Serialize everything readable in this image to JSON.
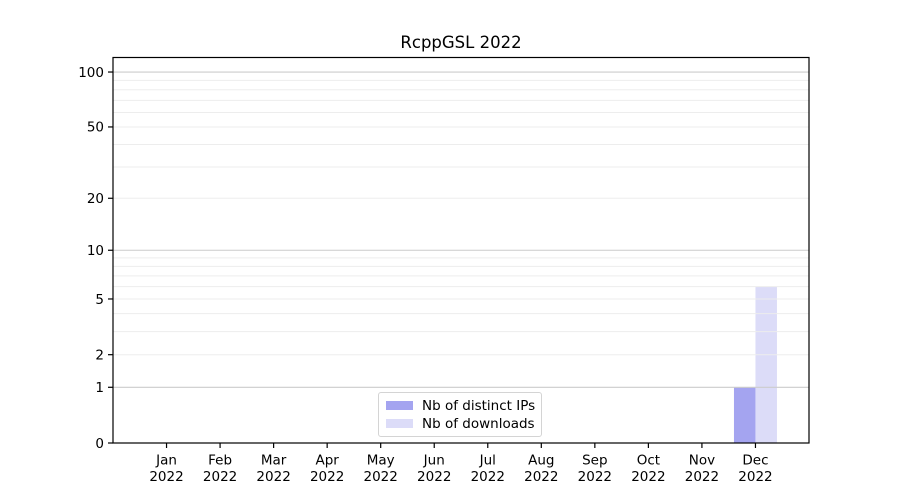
{
  "chart_data": {
    "type": "bar",
    "title": "RcppGSL 2022",
    "categories": [
      "Jan",
      "Feb",
      "Mar",
      "Apr",
      "May",
      "Jun",
      "Jul",
      "Aug",
      "Sep",
      "Oct",
      "Nov",
      "Dec"
    ],
    "year_label": "2022",
    "series": [
      {
        "name": "Nb of distinct IPs",
        "slug": "distinct-ips",
        "color": "#a4a4f0",
        "values": [
          0,
          0,
          0,
          0,
          0,
          0,
          0,
          0,
          0,
          0,
          0,
          1
        ]
      },
      {
        "name": "Nb of downloads",
        "slug": "downloads",
        "color": "#dcdcf8",
        "values": [
          0,
          0,
          0,
          0,
          0,
          0,
          0,
          0,
          0,
          0,
          0,
          6
        ]
      }
    ],
    "xlabel": "",
    "ylabel": "",
    "yscale": "log1p",
    "ylim": [
      0,
      120
    ],
    "yticks": [
      0,
      1,
      2,
      5,
      10,
      20,
      50,
      100
    ],
    "grid": "horizontal",
    "grid_major_values": [
      1,
      10,
      100
    ],
    "grid_minor_values": [
      2,
      3,
      4,
      5,
      6,
      7,
      8,
      9,
      20,
      30,
      40,
      50,
      60,
      70,
      80,
      90
    ],
    "legend_position": "bottom-center"
  },
  "palette": {
    "distinct_ips_bar": "#a4a4f0",
    "downloads_bar": "#dcdcf8",
    "grid_major": "#cccccc",
    "grid_minor": "#ededed",
    "axis": "#000000",
    "text": "#000000",
    "legend_border": "#d4d4d4",
    "background": "#ffffff"
  }
}
